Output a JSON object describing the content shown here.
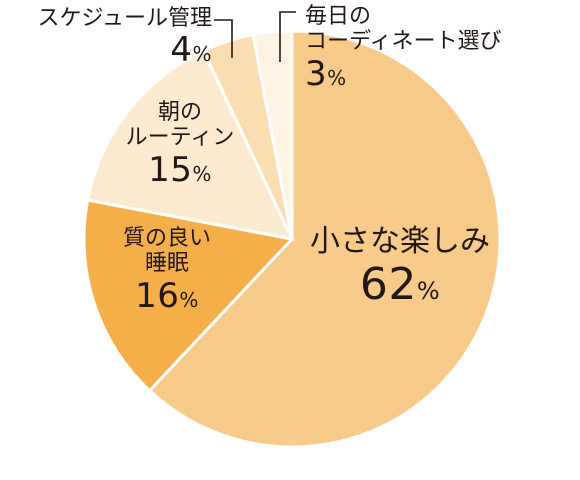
{
  "chart_data": {
    "type": "pie",
    "start_angle_deg": 0,
    "direction": "clockwise",
    "slices": [
      {
        "label": "小さな楽しみ",
        "value": 62,
        "display": "62",
        "color": "#F9CB8B"
      },
      {
        "label": "質の良い睡眠",
        "value": 16,
        "display": "16",
        "color": "#F5AF4A"
      },
      {
        "label": "朝のルーティン",
        "value": 15,
        "display": "15",
        "color": "#FDEBD1"
      },
      {
        "label": "スケジュール管理",
        "value": 4,
        "display": "4",
        "color": "#FBDDB1"
      },
      {
        "label": "毎日のコーディネート選び",
        "value": 3,
        "display": "3",
        "color": "#FEF4E6"
      }
    ]
  },
  "labels": {
    "small_joy": {
      "line1": "小さな楽しみ",
      "value": "62",
      "unit": "%"
    },
    "sleep": {
      "line1": "質の良い",
      "line2": "睡眠",
      "value": "16",
      "unit": "%"
    },
    "routine": {
      "line1": "朝の",
      "line2": "ルーティン",
      "value": "15",
      "unit": "%"
    },
    "schedule": {
      "line1": "スケジュール管理",
      "value": "4",
      "unit": "%"
    },
    "outfit": {
      "line1": "毎日の",
      "line2": "コーディネート選び",
      "value": "3",
      "unit": "%"
    }
  },
  "colors": {
    "leader": "#231815",
    "stroke": "#ffffff"
  }
}
